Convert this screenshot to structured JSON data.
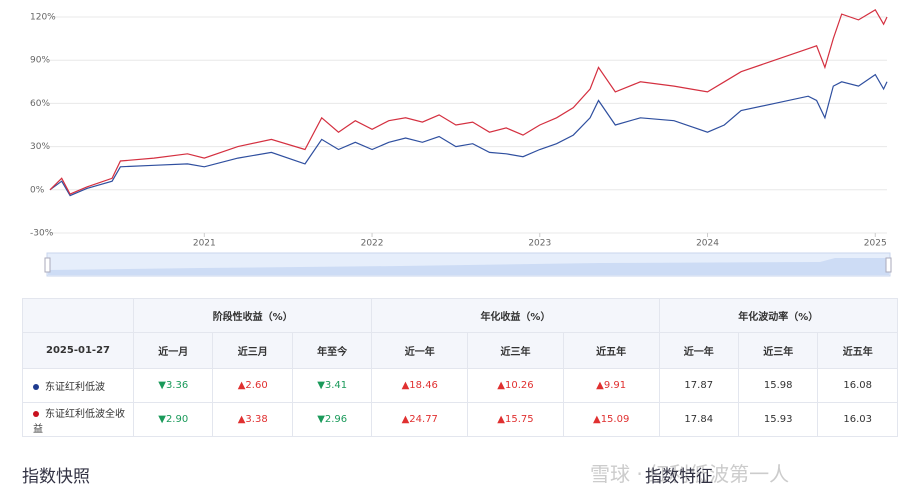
{
  "chart_data": {
    "type": "line",
    "x": [
      2020.08,
      2020.15,
      2020.2,
      2020.3,
      2020.45,
      2020.5,
      2020.7,
      2020.9,
      2021.0,
      2021.2,
      2021.4,
      2021.6,
      2021.7,
      2021.8,
      2021.9,
      2022.0,
      2022.1,
      2022.2,
      2022.3,
      2022.4,
      2022.5,
      2022.6,
      2022.7,
      2022.8,
      2022.9,
      2023.0,
      2023.1,
      2023.2,
      2023.3,
      2023.35,
      2023.45,
      2023.6,
      2023.8,
      2023.9,
      2024.0,
      2024.1,
      2024.2,
      2024.4,
      2024.6,
      2024.65,
      2024.7,
      2024.75,
      2024.8,
      2024.9,
      2025.0,
      2025.05,
      2025.07
    ],
    "series": [
      {
        "color": "#2f4f9f",
        "values": [
          0,
          6,
          -4,
          1,
          6,
          16,
          17,
          18,
          16,
          22,
          26,
          18,
          35,
          28,
          33,
          28,
          33,
          36,
          33,
          37,
          30,
          32,
          26,
          25,
          23,
          28,
          32,
          38,
          50,
          62,
          45,
          50,
          48,
          44,
          40,
          45,
          55,
          60,
          65,
          62,
          50,
          72,
          75,
          72,
          80,
          70,
          75
        ]
      },
      {
        "color": "#d43040",
        "values": [
          0,
          8,
          -3,
          2,
          8,
          20,
          22,
          25,
          22,
          30,
          35,
          28,
          50,
          40,
          48,
          42,
          48,
          50,
          47,
          52,
          45,
          47,
          40,
          43,
          38,
          45,
          50,
          57,
          70,
          85,
          68,
          75,
          72,
          70,
          68,
          75,
          82,
          90,
          98,
          100,
          85,
          105,
          122,
          118,
          125,
          115,
          120
        ]
      }
    ],
    "xlim": [
      2020.08,
      2025.07
    ],
    "xticks": [
      2021,
      2022,
      2023,
      2024,
      2025
    ],
    "ylim": [
      -30,
      120
    ],
    "yticks": [
      {
        "value": -30,
        "label": "-30%"
      },
      {
        "value": 0,
        "label": "0%"
      },
      {
        "value": 30,
        "label": "30%"
      },
      {
        "value": 60,
        "label": "60%"
      },
      {
        "value": 90,
        "label": "90%"
      },
      {
        "value": 120,
        "label": "120%"
      }
    ],
    "grid": true
  },
  "table": {
    "group_headers": [
      "阶段性收益（%）",
      "年化收益（%）",
      "年化波动率（%）"
    ],
    "date": "2025-01-27",
    "columns": [
      "近一月",
      "近三月",
      "年至今",
      "近一年",
      "近三年",
      "近五年",
      "近一年",
      "近三年",
      "近五年"
    ],
    "rows": [
      {
        "name": "东证红利低波",
        "color": "#1f3b8f",
        "cells": [
          "▼3.36",
          "▲2.60",
          "▼3.41",
          "▲18.46",
          "▲10.26",
          "▲9.91",
          "17.87",
          "15.98",
          "16.08"
        ]
      },
      {
        "name": "东证红利低波全收益",
        "color": "#c8101e",
        "cells": [
          "▼2.90",
          "▲3.38",
          "▼2.96",
          "▲24.77",
          "▲15.75",
          "▲15.09",
          "17.84",
          "15.93",
          "16.03"
        ]
      }
    ]
  },
  "footer": {
    "left": "指数快照",
    "right": "指数特征",
    "watermark": "雪球 · 红利低波第一人"
  }
}
